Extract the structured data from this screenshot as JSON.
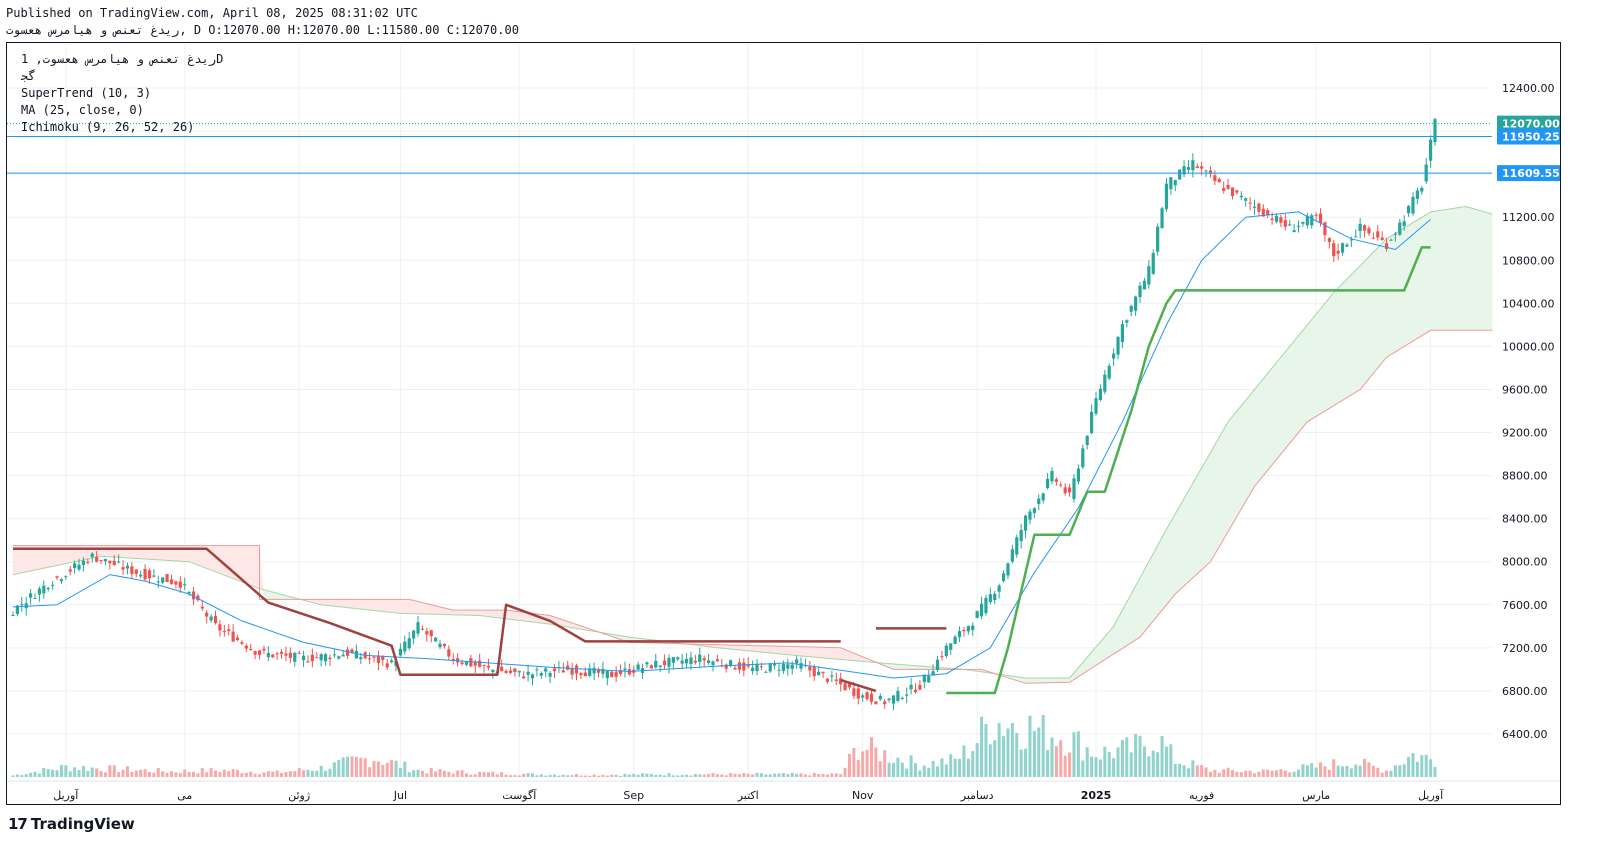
{
  "header": {
    "published": "Published on TradingView.com, April 08, 2025 08:31:02 UTC",
    "ohlc": "ریدغ تعنص و هیامرس هعسوت, D O:12070.00 H:12070.00 L:11580.00 C:12070.00"
  },
  "legend": {
    "symbol": "ریدغ تعنص و هیامرس هعسوت, 1D",
    "subtitle": "ﮔﺠ",
    "supertrend": "SuperTrend (10, 3)",
    "ma": "MA (25, close, 0)",
    "ichimoku": "Ichimoku (9, 26, 52, 26)"
  },
  "footer": {
    "brand": "TradingView"
  },
  "colors": {
    "up": "#26a69a",
    "down": "#ef5350",
    "st_up": "#4caf50",
    "st_down": "#a0413f",
    "ma": "#2196f3",
    "hline": "#2196f3",
    "cloud_green": "#e8f5e9",
    "cloud_red": "#fde8e7"
  },
  "chart_data": {
    "type": "candlestick",
    "ylim": [
      6000,
      12800
    ],
    "y_ticks": [
      6400,
      6800,
      7200,
      7600,
      8000,
      8400,
      8800,
      9200,
      9600,
      10000,
      10400,
      10800,
      11200,
      11600,
      12000,
      12400
    ],
    "y_tick_labels": [
      "6400.00",
      "6800.00",
      "7200.00",
      "7600.00",
      "8000.00",
      "8400.00",
      "8800.00",
      "9200.00",
      "9600.00",
      "10000.00",
      "10400.00",
      "10800.00",
      "11200.00",
      "",
      "",
      "12400.00"
    ],
    "x_labels": [
      {
        "label": "آوریل",
        "i": 12
      },
      {
        "label": "می",
        "i": 39
      },
      {
        "label": "ژوئن",
        "i": 65
      },
      {
        "label": "Jul",
        "i": 88
      },
      {
        "label": "آگوست",
        "i": 115
      },
      {
        "label": "Sep",
        "i": 141
      },
      {
        "label": "اکتبر",
        "i": 167
      },
      {
        "label": "Nov",
        "i": 193
      },
      {
        "label": "دسامبر",
        "i": 219
      },
      {
        "label": "2025",
        "i": 246
      },
      {
        "label": "فوریه",
        "i": 270
      },
      {
        "label": "مارس",
        "i": 296
      },
      {
        "label": "آوریل",
        "i": 322
      }
    ],
    "price_tags": [
      {
        "label": "12070.00",
        "value": 12070,
        "color": "#26a69a",
        "style": "dotted"
      },
      {
        "label": "11950.25",
        "value": 11950.25,
        "color": "#2196f3",
        "style": "solid"
      },
      {
        "label": "11609.55",
        "value": 11609.55,
        "color": "#2196f3",
        "style": "solid"
      }
    ],
    "anchors": [
      [
        0,
        7550
      ],
      [
        8,
        7800
      ],
      [
        18,
        8050
      ],
      [
        28,
        7900
      ],
      [
        38,
        7800
      ],
      [
        46,
        7400
      ],
      [
        56,
        7150
      ],
      [
        66,
        7100
      ],
      [
        76,
        7150
      ],
      [
        86,
        7050
      ],
      [
        92,
        7400
      ],
      [
        100,
        7100
      ],
      [
        108,
        7000
      ],
      [
        116,
        6950
      ],
      [
        126,
        7000
      ],
      [
        136,
        6950
      ],
      [
        146,
        7050
      ],
      [
        156,
        7100
      ],
      [
        168,
        7000
      ],
      [
        178,
        7050
      ],
      [
        186,
        6900
      ],
      [
        193,
        6750
      ],
      [
        198,
        6700
      ],
      [
        206,
        6850
      ],
      [
        212,
        7200
      ],
      [
        218,
        7450
      ],
      [
        224,
        7800
      ],
      [
        230,
        8400
      ],
      [
        236,
        8800
      ],
      [
        240,
        8600
      ],
      [
        246,
        9500
      ],
      [
        252,
        10200
      ],
      [
        258,
        10700
      ],
      [
        262,
        11500
      ],
      [
        268,
        11700
      ],
      [
        274,
        11500
      ],
      [
        282,
        11300
      ],
      [
        290,
        11100
      ],
      [
        296,
        11200
      ],
      [
        300,
        10850
      ],
      [
        306,
        11100
      ],
      [
        312,
        10950
      ],
      [
        316,
        11200
      ],
      [
        320,
        11500
      ],
      [
        323,
        12070
      ]
    ],
    "n_bars": 324,
    "supertrend": [
      [
        0,
        8120
      ],
      [
        44,
        8120
      ],
      [
        58,
        7620
      ],
      [
        72,
        7430
      ],
      [
        86,
        7220
      ],
      [
        88,
        6950
      ],
      [
        110,
        6950
      ],
      [
        112,
        7600
      ],
      [
        122,
        7450
      ],
      [
        130,
        7260
      ],
      [
        188,
        7260
      ],
      [
        188,
        6900
      ],
      [
        196,
        6800
      ],
      [
        196,
        7380
      ],
      [
        212,
        7380
      ],
      [
        212,
        6780
      ],
      [
        223,
        6780
      ],
      [
        226,
        7200
      ],
      [
        232,
        8250
      ],
      [
        240,
        8250
      ],
      [
        244,
        8650
      ],
      [
        248,
        8650
      ],
      [
        254,
        9400
      ],
      [
        258,
        10000
      ],
      [
        262,
        10400
      ],
      [
        264,
        10520
      ],
      [
        316,
        10520
      ],
      [
        320,
        10920
      ],
      [
        322,
        10920
      ]
    ],
    "ma": [
      [
        0,
        7580
      ],
      [
        10,
        7600
      ],
      [
        22,
        7880
      ],
      [
        30,
        7820
      ],
      [
        40,
        7700
      ],
      [
        52,
        7450
      ],
      [
        66,
        7250
      ],
      [
        80,
        7130
      ],
      [
        94,
        7100
      ],
      [
        108,
        7060
      ],
      [
        122,
        7020
      ],
      [
        140,
        6980
      ],
      [
        160,
        7030
      ],
      [
        176,
        7060
      ],
      [
        190,
        6980
      ],
      [
        200,
        6920
      ],
      [
        212,
        6960
      ],
      [
        222,
        7200
      ],
      [
        232,
        7900
      ],
      [
        242,
        8500
      ],
      [
        252,
        9300
      ],
      [
        262,
        10200
      ],
      [
        270,
        10800
      ],
      [
        280,
        11200
      ],
      [
        292,
        11250
      ],
      [
        304,
        11000
      ],
      [
        314,
        10900
      ],
      [
        322,
        11180
      ]
    ],
    "span_a": [
      [
        0,
        7880
      ],
      [
        20,
        8050
      ],
      [
        40,
        8000
      ],
      [
        56,
        7750
      ],
      [
        70,
        7600
      ],
      [
        88,
        7520
      ],
      [
        106,
        7500
      ],
      [
        122,
        7420
      ],
      [
        140,
        7300
      ],
      [
        160,
        7200
      ],
      [
        180,
        7120
      ],
      [
        200,
        7050
      ],
      [
        216,
        7000
      ],
      [
        230,
        6920
      ],
      [
        240,
        6920
      ],
      [
        250,
        7400
      ],
      [
        262,
        8300
      ],
      [
        276,
        9300
      ],
      [
        290,
        10000
      ],
      [
        300,
        10500
      ],
      [
        312,
        11000
      ],
      [
        322,
        11250
      ],
      [
        330,
        11300
      ],
      [
        336,
        11230
      ]
    ],
    "span_b": [
      [
        0,
        8150
      ],
      [
        56,
        8150
      ],
      [
        56,
        7650
      ],
      [
        90,
        7650
      ],
      [
        100,
        7550
      ],
      [
        112,
        7550
      ],
      [
        122,
        7500
      ],
      [
        140,
        7250
      ],
      [
        188,
        7200
      ],
      [
        200,
        7000
      ],
      [
        220,
        7000
      ],
      [
        230,
        6870
      ],
      [
        240,
        6880
      ],
      [
        256,
        7300
      ],
      [
        264,
        7700
      ],
      [
        272,
        8000
      ],
      [
        282,
        8700
      ],
      [
        294,
        9300
      ],
      [
        306,
        9600
      ],
      [
        312,
        9900
      ],
      [
        322,
        10150
      ],
      [
        330,
        10150
      ],
      [
        336,
        10150
      ]
    ],
    "volume": [
      [
        0,
        0.03
      ],
      [
        12,
        0.18
      ],
      [
        24,
        0.14
      ],
      [
        36,
        0.1
      ],
      [
        48,
        0.12
      ],
      [
        60,
        0.08
      ],
      [
        70,
        0.16
      ],
      [
        82,
        0.35
      ],
      [
        92,
        0.12
      ],
      [
        104,
        0.08
      ],
      [
        118,
        0.05
      ],
      [
        132,
        0.04
      ],
      [
        146,
        0.05
      ],
      [
        160,
        0.05
      ],
      [
        176,
        0.05
      ],
      [
        188,
        0.05
      ],
      [
        192,
        0.55
      ],
      [
        206,
        0.22
      ],
      [
        214,
        0.3
      ],
      [
        218,
        0.55
      ],
      [
        222,
        1.0
      ],
      [
        228,
        0.95
      ],
      [
        234,
        0.82
      ],
      [
        240,
        0.7
      ],
      [
        246,
        0.42
      ],
      [
        254,
        0.5
      ],
      [
        260,
        0.7
      ],
      [
        264,
        0.3
      ],
      [
        272,
        0.12
      ],
      [
        284,
        0.1
      ],
      [
        296,
        0.18
      ],
      [
        304,
        0.28
      ],
      [
        312,
        0.12
      ],
      [
        318,
        0.4
      ],
      [
        323,
        0.3
      ]
    ]
  }
}
